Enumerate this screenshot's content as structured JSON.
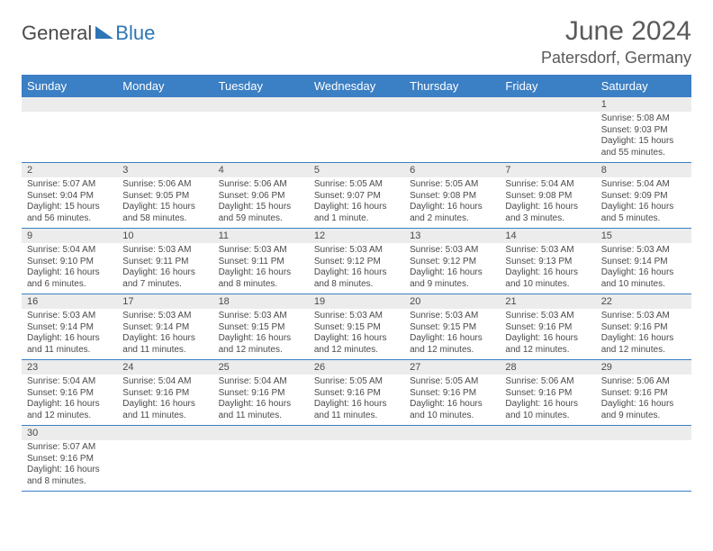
{
  "brand": {
    "text_general": "General",
    "text_blue": "Blue"
  },
  "title": {
    "month": "June 2024",
    "location": "Patersdorf, Germany"
  },
  "colors": {
    "header_bg": "#3b7fc4",
    "header_text": "#ffffff",
    "band_bg": "#ececec",
    "border": "#3b7fc4",
    "text": "#4a4a4a",
    "brand_blue": "#2e75b6"
  },
  "day_names": [
    "Sunday",
    "Monday",
    "Tuesday",
    "Wednesday",
    "Thursday",
    "Friday",
    "Saturday"
  ],
  "weeks": [
    [
      {
        "n": "",
        "sr": "",
        "ss": "",
        "dl": ""
      },
      {
        "n": "",
        "sr": "",
        "ss": "",
        "dl": ""
      },
      {
        "n": "",
        "sr": "",
        "ss": "",
        "dl": ""
      },
      {
        "n": "",
        "sr": "",
        "ss": "",
        "dl": ""
      },
      {
        "n": "",
        "sr": "",
        "ss": "",
        "dl": ""
      },
      {
        "n": "",
        "sr": "",
        "ss": "",
        "dl": ""
      },
      {
        "n": "1",
        "sr": "Sunrise: 5:08 AM",
        "ss": "Sunset: 9:03 PM",
        "dl": "Daylight: 15 hours and 55 minutes."
      }
    ],
    [
      {
        "n": "2",
        "sr": "Sunrise: 5:07 AM",
        "ss": "Sunset: 9:04 PM",
        "dl": "Daylight: 15 hours and 56 minutes."
      },
      {
        "n": "3",
        "sr": "Sunrise: 5:06 AM",
        "ss": "Sunset: 9:05 PM",
        "dl": "Daylight: 15 hours and 58 minutes."
      },
      {
        "n": "4",
        "sr": "Sunrise: 5:06 AM",
        "ss": "Sunset: 9:06 PM",
        "dl": "Daylight: 15 hours and 59 minutes."
      },
      {
        "n": "5",
        "sr": "Sunrise: 5:05 AM",
        "ss": "Sunset: 9:07 PM",
        "dl": "Daylight: 16 hours and 1 minute."
      },
      {
        "n": "6",
        "sr": "Sunrise: 5:05 AM",
        "ss": "Sunset: 9:08 PM",
        "dl": "Daylight: 16 hours and 2 minutes."
      },
      {
        "n": "7",
        "sr": "Sunrise: 5:04 AM",
        "ss": "Sunset: 9:08 PM",
        "dl": "Daylight: 16 hours and 3 minutes."
      },
      {
        "n": "8",
        "sr": "Sunrise: 5:04 AM",
        "ss": "Sunset: 9:09 PM",
        "dl": "Daylight: 16 hours and 5 minutes."
      }
    ],
    [
      {
        "n": "9",
        "sr": "Sunrise: 5:04 AM",
        "ss": "Sunset: 9:10 PM",
        "dl": "Daylight: 16 hours and 6 minutes."
      },
      {
        "n": "10",
        "sr": "Sunrise: 5:03 AM",
        "ss": "Sunset: 9:11 PM",
        "dl": "Daylight: 16 hours and 7 minutes."
      },
      {
        "n": "11",
        "sr": "Sunrise: 5:03 AM",
        "ss": "Sunset: 9:11 PM",
        "dl": "Daylight: 16 hours and 8 minutes."
      },
      {
        "n": "12",
        "sr": "Sunrise: 5:03 AM",
        "ss": "Sunset: 9:12 PM",
        "dl": "Daylight: 16 hours and 8 minutes."
      },
      {
        "n": "13",
        "sr": "Sunrise: 5:03 AM",
        "ss": "Sunset: 9:12 PM",
        "dl": "Daylight: 16 hours and 9 minutes."
      },
      {
        "n": "14",
        "sr": "Sunrise: 5:03 AM",
        "ss": "Sunset: 9:13 PM",
        "dl": "Daylight: 16 hours and 10 minutes."
      },
      {
        "n": "15",
        "sr": "Sunrise: 5:03 AM",
        "ss": "Sunset: 9:14 PM",
        "dl": "Daylight: 16 hours and 10 minutes."
      }
    ],
    [
      {
        "n": "16",
        "sr": "Sunrise: 5:03 AM",
        "ss": "Sunset: 9:14 PM",
        "dl": "Daylight: 16 hours and 11 minutes."
      },
      {
        "n": "17",
        "sr": "Sunrise: 5:03 AM",
        "ss": "Sunset: 9:14 PM",
        "dl": "Daylight: 16 hours and 11 minutes."
      },
      {
        "n": "18",
        "sr": "Sunrise: 5:03 AM",
        "ss": "Sunset: 9:15 PM",
        "dl": "Daylight: 16 hours and 12 minutes."
      },
      {
        "n": "19",
        "sr": "Sunrise: 5:03 AM",
        "ss": "Sunset: 9:15 PM",
        "dl": "Daylight: 16 hours and 12 minutes."
      },
      {
        "n": "20",
        "sr": "Sunrise: 5:03 AM",
        "ss": "Sunset: 9:15 PM",
        "dl": "Daylight: 16 hours and 12 minutes."
      },
      {
        "n": "21",
        "sr": "Sunrise: 5:03 AM",
        "ss": "Sunset: 9:16 PM",
        "dl": "Daylight: 16 hours and 12 minutes."
      },
      {
        "n": "22",
        "sr": "Sunrise: 5:03 AM",
        "ss": "Sunset: 9:16 PM",
        "dl": "Daylight: 16 hours and 12 minutes."
      }
    ],
    [
      {
        "n": "23",
        "sr": "Sunrise: 5:04 AM",
        "ss": "Sunset: 9:16 PM",
        "dl": "Daylight: 16 hours and 12 minutes."
      },
      {
        "n": "24",
        "sr": "Sunrise: 5:04 AM",
        "ss": "Sunset: 9:16 PM",
        "dl": "Daylight: 16 hours and 11 minutes."
      },
      {
        "n": "25",
        "sr": "Sunrise: 5:04 AM",
        "ss": "Sunset: 9:16 PM",
        "dl": "Daylight: 16 hours and 11 minutes."
      },
      {
        "n": "26",
        "sr": "Sunrise: 5:05 AM",
        "ss": "Sunset: 9:16 PM",
        "dl": "Daylight: 16 hours and 11 minutes."
      },
      {
        "n": "27",
        "sr": "Sunrise: 5:05 AM",
        "ss": "Sunset: 9:16 PM",
        "dl": "Daylight: 16 hours and 10 minutes."
      },
      {
        "n": "28",
        "sr": "Sunrise: 5:06 AM",
        "ss": "Sunset: 9:16 PM",
        "dl": "Daylight: 16 hours and 10 minutes."
      },
      {
        "n": "29",
        "sr": "Sunrise: 5:06 AM",
        "ss": "Sunset: 9:16 PM",
        "dl": "Daylight: 16 hours and 9 minutes."
      }
    ],
    [
      {
        "n": "30",
        "sr": "Sunrise: 5:07 AM",
        "ss": "Sunset: 9:16 PM",
        "dl": "Daylight: 16 hours and 8 minutes."
      },
      {
        "n": "",
        "sr": "",
        "ss": "",
        "dl": ""
      },
      {
        "n": "",
        "sr": "",
        "ss": "",
        "dl": ""
      },
      {
        "n": "",
        "sr": "",
        "ss": "",
        "dl": ""
      },
      {
        "n": "",
        "sr": "",
        "ss": "",
        "dl": ""
      },
      {
        "n": "",
        "sr": "",
        "ss": "",
        "dl": ""
      },
      {
        "n": "",
        "sr": "",
        "ss": "",
        "dl": ""
      }
    ]
  ]
}
